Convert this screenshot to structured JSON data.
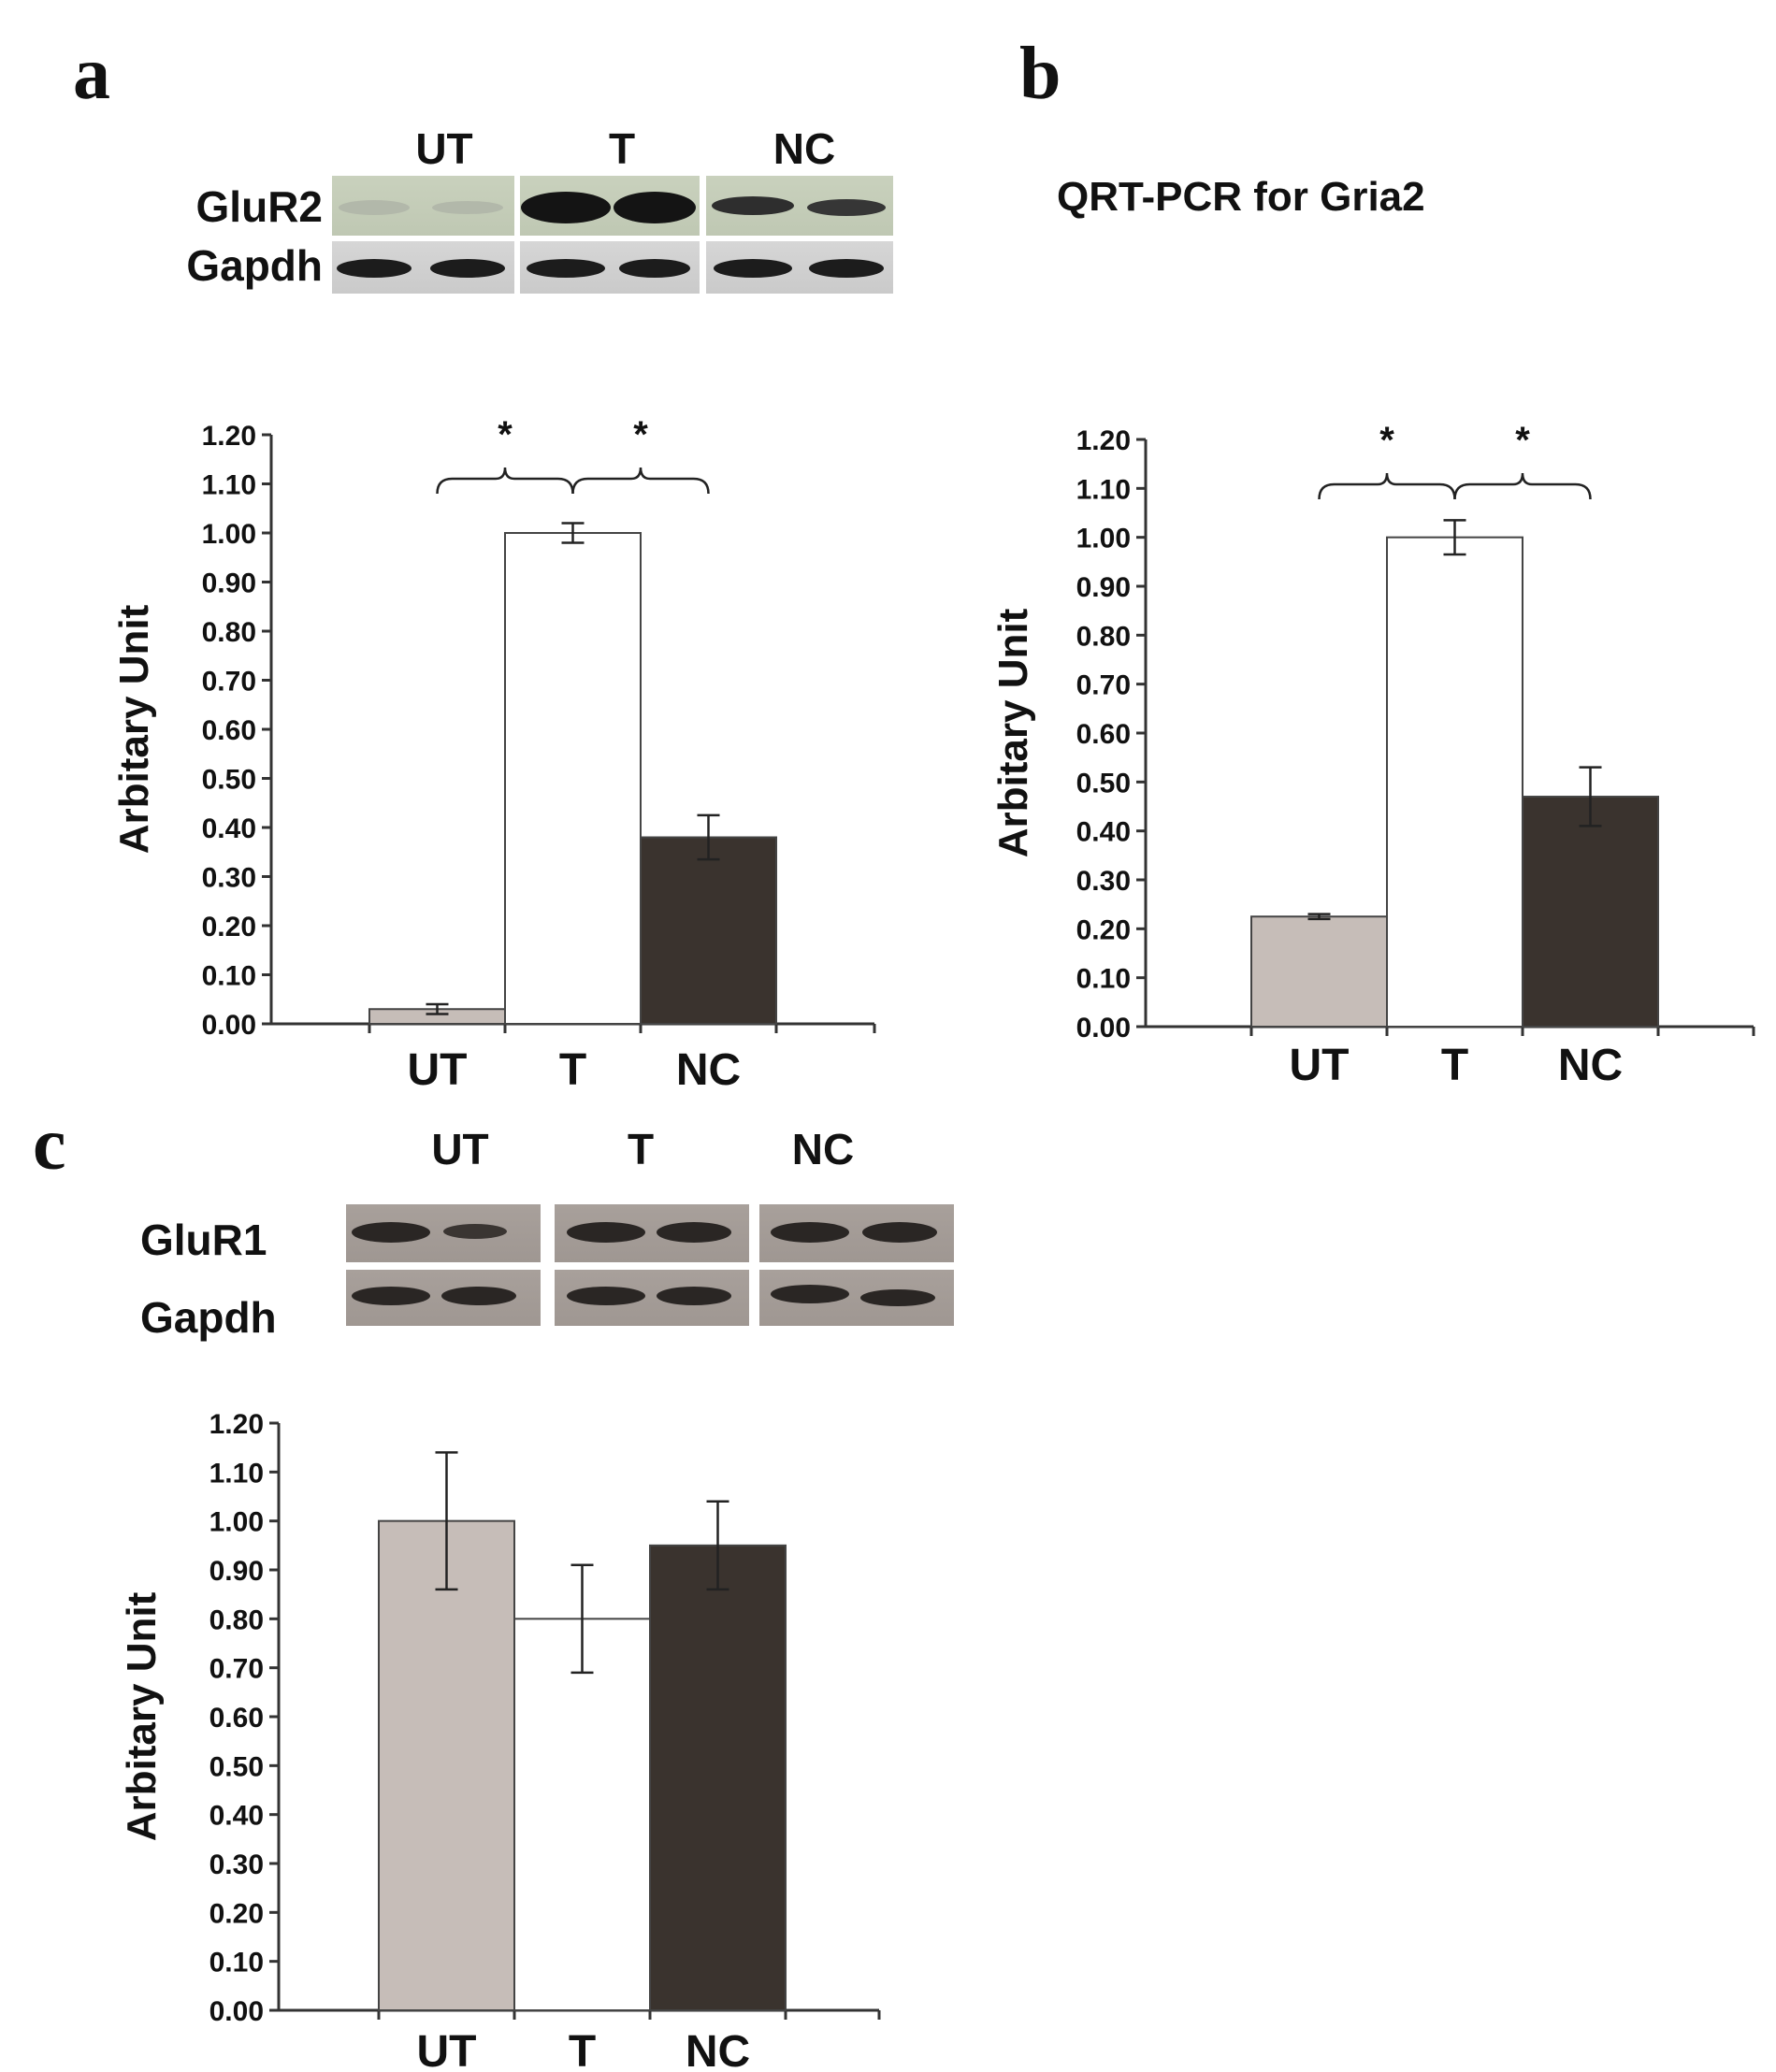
{
  "panels": {
    "a": {
      "letter": "a",
      "blot": {
        "lane_groups": [
          "UT",
          "T",
          "NC"
        ],
        "rows": [
          "GluR2",
          "Gapdh"
        ]
      }
    },
    "b": {
      "letter": "b",
      "title": "QRT-PCR for Gria2"
    },
    "c": {
      "letter": "c",
      "blot": {
        "lane_groups": [
          "UT",
          "T",
          "NC"
        ],
        "rows": [
          "GluR1",
          "Gapdh"
        ]
      }
    }
  },
  "colors": {
    "UT": "#c6bdb8",
    "T": "#ffffff",
    "NC": "#3a332e",
    "axis": "#333333"
  },
  "chart_data": [
    {
      "panel": "a",
      "type": "bar",
      "categories": [
        "UT",
        "T",
        "NC"
      ],
      "values": [
        0.03,
        1.0,
        0.38
      ],
      "errors": [
        0.01,
        0.02,
        0.045
      ],
      "ylabel": "Arbitary Unit",
      "ylim": [
        0,
        1.2
      ],
      "yticks": [
        "0.00",
        "0.10",
        "0.20",
        "0.30",
        "0.40",
        "0.50",
        "0.60",
        "0.70",
        "0.80",
        "0.90",
        "1.00",
        "1.10",
        "1.20"
      ],
      "significance": [
        {
          "pair": [
            "UT",
            "T"
          ],
          "label": "*"
        },
        {
          "pair": [
            "T",
            "NC"
          ],
          "label": "*"
        }
      ],
      "grid": false,
      "legend": "none"
    },
    {
      "panel": "b",
      "type": "bar",
      "categories": [
        "UT",
        "T",
        "NC"
      ],
      "values": [
        0.225,
        1.0,
        0.47
      ],
      "errors": [
        0.005,
        0.035,
        0.06
      ],
      "ylabel": "Arbitary Unit",
      "ylim": [
        0,
        1.2
      ],
      "yticks": [
        "0.00",
        "0.10",
        "0.20",
        "0.30",
        "0.40",
        "0.50",
        "0.60",
        "0.70",
        "0.80",
        "0.90",
        "1.00",
        "1.10",
        "1.20"
      ],
      "significance": [
        {
          "pair": [
            "UT",
            "T"
          ],
          "label": "*"
        },
        {
          "pair": [
            "T",
            "NC"
          ],
          "label": "*"
        }
      ],
      "grid": false,
      "legend": "none"
    },
    {
      "panel": "c",
      "type": "bar",
      "categories": [
        "UT",
        "T",
        "NC"
      ],
      "values": [
        1.0,
        0.8,
        0.95
      ],
      "errors": [
        0.14,
        0.11,
        0.09
      ],
      "ylabel": "Arbitary Unit",
      "ylim": [
        0,
        1.2
      ],
      "yticks": [
        "0.00",
        "0.10",
        "0.20",
        "0.30",
        "0.40",
        "0.50",
        "0.60",
        "0.70",
        "0.80",
        "0.90",
        "1.00",
        "1.10",
        "1.20"
      ],
      "significance": [],
      "grid": false,
      "legend": "none"
    }
  ]
}
